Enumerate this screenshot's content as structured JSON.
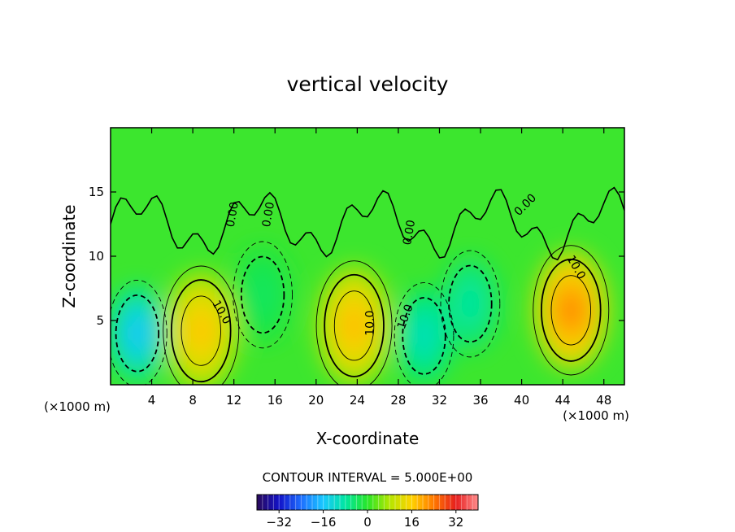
{
  "chart_data": {
    "type": "heatmap",
    "title": "vertical velocity",
    "xlabel": "X-coordinate",
    "ylabel": "Z-coordinate",
    "x_unit_label": "(×1000 m)",
    "y_unit_label": "(×1000 m)",
    "xlim": [
      0,
      50
    ],
    "ylim": [
      0,
      20
    ],
    "x_ticks": [
      4,
      8,
      12,
      16,
      20,
      24,
      28,
      32,
      36,
      40,
      44,
      48
    ],
    "y_ticks": [
      5,
      10,
      15
    ],
    "contour_interval_label": "CONTOUR INTERVAL = 5.000E+00",
    "colorbar": {
      "range": [
        -40,
        40
      ],
      "ticks": [
        -32,
        -16,
        0,
        16,
        32
      ],
      "colors": [
        "#2a0a5a",
        "#1212c8",
        "#1e6eff",
        "#19c8ff",
        "#00e6a0",
        "#28e628",
        "#b4e600",
        "#ffd200",
        "#ff7800",
        "#e61e1e",
        "#ff8c8c"
      ]
    },
    "contour_labels": [
      {
        "text": "10.0",
        "x": 10.5,
        "z": 5.5,
        "rot": 60
      },
      {
        "text": "10.0",
        "x": 25.6,
        "z": 4.8,
        "rot": -90
      },
      {
        "text": "10.0",
        "x": 29.0,
        "z": 5.2,
        "rot": -70
      },
      {
        "text": "10.0",
        "x": 45.0,
        "z": 9.0,
        "rot": 60
      },
      {
        "text": "0.00",
        "x": 12.2,
        "z": 13.2,
        "rot": -80
      },
      {
        "text": "0.00",
        "x": 15.7,
        "z": 13.2,
        "rot": -80
      },
      {
        "text": "0.00",
        "x": 29.4,
        "z": 11.8,
        "rot": -80
      },
      {
        "text": "0.00",
        "x": 40.6,
        "z": 13.8,
        "rot": -45
      }
    ],
    "updrafts": [
      {
        "x": 8.8,
        "z": 4.2,
        "peak": 18
      },
      {
        "x": 23.7,
        "z": 4.6,
        "peak": 19
      },
      {
        "x": 44.8,
        "z": 5.8,
        "peak": 24
      }
    ],
    "downdrafts": [
      {
        "x": 2.6,
        "z": 4.0,
        "peak": -17
      },
      {
        "x": 30.5,
        "z": 3.8,
        "peak": -11
      },
      {
        "x": 35.0,
        "z": 6.3,
        "peak": -9
      },
      {
        "x": 14.8,
        "z": 7.0,
        "peak": -4
      }
    ]
  }
}
